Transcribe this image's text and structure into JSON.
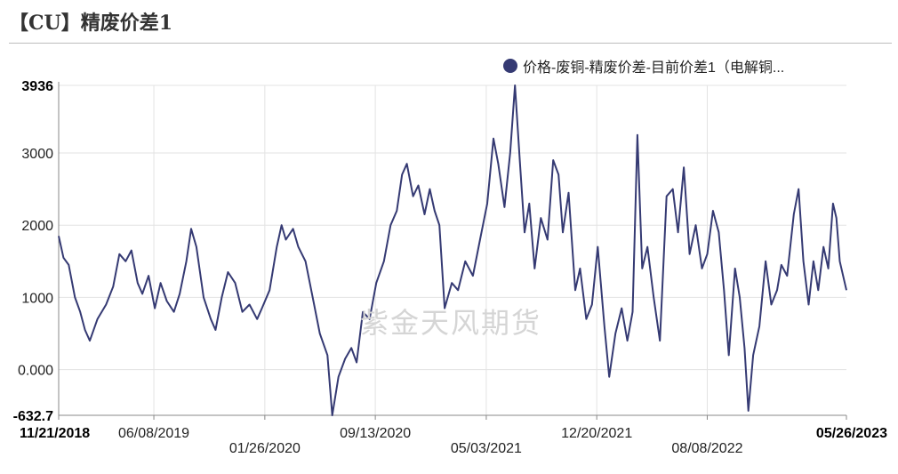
{
  "title": "【CU】精废价差1",
  "watermark": "紫金天风期货",
  "colors": {
    "series": "#353a73",
    "grid": "#e3e3e3",
    "axis": "#888888"
  },
  "chart_data": {
    "type": "line",
    "title": "【CU】精废价差1",
    "legend_position": "top-right",
    "grid": {
      "vertical": true,
      "horizontal": true
    },
    "series": [
      {
        "name": "价格-废铜-精废价差-目前价差1（电解铜...",
        "color": "#353a73",
        "points": [
          [
            "2018-11-21",
            1850
          ],
          [
            "2018-12-01",
            1550
          ],
          [
            "2018-12-12",
            1450
          ],
          [
            "2018-12-25",
            1000
          ],
          [
            "2019-01-05",
            800
          ],
          [
            "2019-01-15",
            550
          ],
          [
            "2019-01-25",
            400
          ],
          [
            "2019-02-10",
            700
          ],
          [
            "2019-02-28",
            900
          ],
          [
            "2019-03-15",
            1150
          ],
          [
            "2019-03-28",
            1600
          ],
          [
            "2019-04-10",
            1500
          ],
          [
            "2019-04-22",
            1650
          ],
          [
            "2019-05-05",
            1200
          ],
          [
            "2019-05-15",
            1050
          ],
          [
            "2019-05-28",
            1300
          ],
          [
            "2019-06-10",
            850
          ],
          [
            "2019-06-22",
            1200
          ],
          [
            "2019-07-05",
            950
          ],
          [
            "2019-07-20",
            800
          ],
          [
            "2019-08-01",
            1050
          ],
          [
            "2019-08-15",
            1500
          ],
          [
            "2019-08-25",
            1950
          ],
          [
            "2019-09-05",
            1700
          ],
          [
            "2019-09-20",
            1000
          ],
          [
            "2019-10-05",
            700
          ],
          [
            "2019-10-15",
            550
          ],
          [
            "2019-10-28",
            1000
          ],
          [
            "2019-11-10",
            1350
          ],
          [
            "2019-11-25",
            1200
          ],
          [
            "2019-12-10",
            800
          ],
          [
            "2019-12-25",
            900
          ],
          [
            "2020-01-10",
            700
          ],
          [
            "2020-01-20",
            850
          ],
          [
            "2020-02-05",
            1100
          ],
          [
            "2020-02-20",
            1700
          ],
          [
            "2020-03-01",
            2000
          ],
          [
            "2020-03-10",
            1800
          ],
          [
            "2020-03-25",
            1950
          ],
          [
            "2020-04-05",
            1700
          ],
          [
            "2020-04-20",
            1500
          ],
          [
            "2020-05-05",
            1000
          ],
          [
            "2020-05-20",
            500
          ],
          [
            "2020-06-05",
            200
          ],
          [
            "2020-06-15",
            -632.7
          ],
          [
            "2020-06-28",
            -100
          ],
          [
            "2020-07-12",
            150
          ],
          [
            "2020-07-25",
            300
          ],
          [
            "2020-08-05",
            100
          ],
          [
            "2020-08-18",
            800
          ],
          [
            "2020-09-01",
            700
          ],
          [
            "2020-09-15",
            1200
          ],
          [
            "2020-10-01",
            1500
          ],
          [
            "2020-10-15",
            2000
          ],
          [
            "2020-10-28",
            2200
          ],
          [
            "2020-11-08",
            2700
          ],
          [
            "2020-11-18",
            2850
          ],
          [
            "2020-12-01",
            2400
          ],
          [
            "2020-12-12",
            2550
          ],
          [
            "2020-12-25",
            2150
          ],
          [
            "2021-01-05",
            2500
          ],
          [
            "2021-01-15",
            2200
          ],
          [
            "2021-01-25",
            2000
          ],
          [
            "2021-02-05",
            850
          ],
          [
            "2021-02-20",
            1200
          ],
          [
            "2021-03-05",
            1100
          ],
          [
            "2021-03-20",
            1500
          ],
          [
            "2021-04-05",
            1300
          ],
          [
            "2021-04-20",
            1800
          ],
          [
            "2021-05-05",
            2300
          ],
          [
            "2021-05-18",
            3200
          ],
          [
            "2021-05-28",
            2850
          ],
          [
            "2021-06-10",
            2250
          ],
          [
            "2021-06-22",
            3000
          ],
          [
            "2021-07-02",
            3936
          ],
          [
            "2021-07-12",
            2900
          ],
          [
            "2021-07-22",
            1900
          ],
          [
            "2021-08-01",
            2300
          ],
          [
            "2021-08-12",
            1400
          ],
          [
            "2021-08-25",
            2100
          ],
          [
            "2021-09-08",
            1800
          ],
          [
            "2021-09-20",
            2900
          ],
          [
            "2021-10-01",
            2700
          ],
          [
            "2021-10-10",
            1900
          ],
          [
            "2021-10-22",
            2450
          ],
          [
            "2021-11-05",
            1100
          ],
          [
            "2021-11-15",
            1400
          ],
          [
            "2021-11-28",
            700
          ],
          [
            "2021-12-10",
            900
          ],
          [
            "2021-12-22",
            1700
          ],
          [
            "2022-01-05",
            600
          ],
          [
            "2022-01-15",
            -100
          ],
          [
            "2022-01-28",
            500
          ],
          [
            "2022-02-10",
            850
          ],
          [
            "2022-02-22",
            400
          ],
          [
            "2022-03-05",
            800
          ],
          [
            "2022-03-15",
            3250
          ],
          [
            "2022-03-25",
            1400
          ],
          [
            "2022-04-05",
            1700
          ],
          [
            "2022-04-18",
            1000
          ],
          [
            "2022-05-01",
            400
          ],
          [
            "2022-05-15",
            2400
          ],
          [
            "2022-05-28",
            2500
          ],
          [
            "2022-06-08",
            1900
          ],
          [
            "2022-06-20",
            2800
          ],
          [
            "2022-07-02",
            1600
          ],
          [
            "2022-07-15",
            2000
          ],
          [
            "2022-07-28",
            1400
          ],
          [
            "2022-08-08",
            1600
          ],
          [
            "2022-08-20",
            2200
          ],
          [
            "2022-09-01",
            1900
          ],
          [
            "2022-09-12",
            1100
          ],
          [
            "2022-09-22",
            200
          ],
          [
            "2022-10-05",
            1400
          ],
          [
            "2022-10-15",
            1000
          ],
          [
            "2022-10-25",
            300
          ],
          [
            "2022-11-02",
            -570
          ],
          [
            "2022-11-12",
            200
          ],
          [
            "2022-11-25",
            600
          ],
          [
            "2022-12-08",
            1500
          ],
          [
            "2022-12-20",
            900
          ],
          [
            "2023-01-01",
            1100
          ],
          [
            "2023-01-10",
            1450
          ],
          [
            "2023-01-22",
            1300
          ],
          [
            "2023-02-05",
            2150
          ],
          [
            "2023-02-15",
            2500
          ],
          [
            "2023-02-25",
            1500
          ],
          [
            "2023-03-08",
            900
          ],
          [
            "2023-03-18",
            1500
          ],
          [
            "2023-03-28",
            1100
          ],
          [
            "2023-04-08",
            1700
          ],
          [
            "2023-04-18",
            1400
          ],
          [
            "2023-04-28",
            2300
          ],
          [
            "2023-05-05",
            2100
          ],
          [
            "2023-05-12",
            1500
          ],
          [
            "2023-05-26",
            1100
          ]
        ]
      }
    ],
    "y_ticks": [
      {
        "value": 3936,
        "label": "3936",
        "bold": true
      },
      {
        "value": 3000,
        "label": "3000",
        "bold": false
      },
      {
        "value": 2000,
        "label": "2000",
        "bold": false
      },
      {
        "value": 1000,
        "label": "1000",
        "bold": false
      },
      {
        "value": 0,
        "label": "0.000",
        "bold": false
      },
      {
        "value": -632.7,
        "label": "-632.7",
        "bold": true
      }
    ],
    "x_ticks": [
      {
        "date": "2018-11-21",
        "label": "11/21/2018",
        "row": 0,
        "bold": true
      },
      {
        "date": "2019-06-08",
        "label": "06/08/2019",
        "row": 0,
        "bold": false
      },
      {
        "date": "2020-01-26",
        "label": "01/26/2020",
        "row": 1,
        "bold": false
      },
      {
        "date": "2020-09-13",
        "label": "09/13/2020",
        "row": 0,
        "bold": false
      },
      {
        "date": "2021-05-03",
        "label": "05/03/2021",
        "row": 1,
        "bold": false
      },
      {
        "date": "2021-12-20",
        "label": "12/20/2021",
        "row": 0,
        "bold": false
      },
      {
        "date": "2022-08-08",
        "label": "08/08/2022",
        "row": 1,
        "bold": false
      },
      {
        "date": "2023-05-26",
        "label": "05/26/2023",
        "row": 0,
        "bold": true
      }
    ],
    "xlim": [
      "2018-11-21",
      "2023-05-26"
    ],
    "ylim": [
      -632.7,
      3936
    ]
  }
}
